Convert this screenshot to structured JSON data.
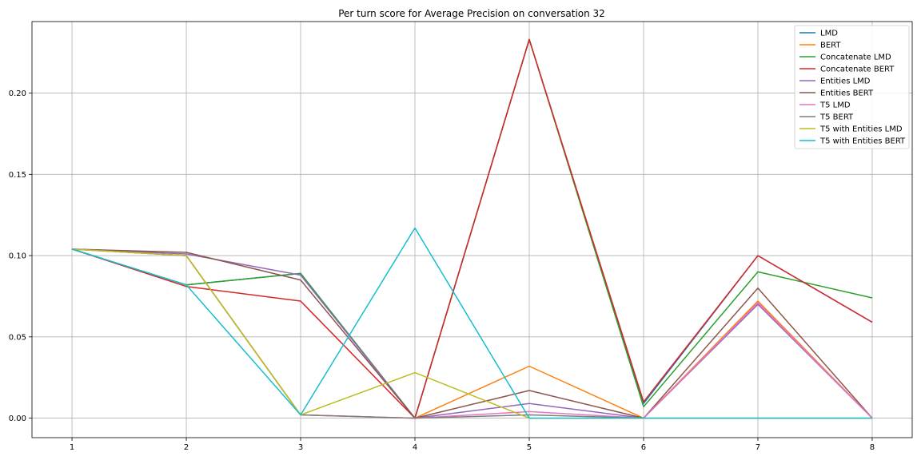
{
  "chart_data": {
    "type": "line",
    "title": "Per turn score for Average Precision on conversation 32",
    "xlabel": "",
    "ylabel": "",
    "x": [
      1,
      2,
      3,
      4,
      5,
      6,
      7,
      8
    ],
    "xlim": [
      0.65,
      8.35
    ],
    "ylim": [
      -0.012,
      0.244
    ],
    "yticks": [
      "0.00",
      "0.05",
      "0.10",
      "0.15",
      "0.20"
    ],
    "grid": true,
    "legend_position": "top-right",
    "series": [
      {
        "name": "LMD",
        "color": "#1f77b4",
        "values": [
          0.104,
          0.082,
          0.089,
          0.0,
          0.233,
          0.009,
          0.1,
          0.059
        ]
      },
      {
        "name": "BERT",
        "color": "#ff7f0e",
        "values": [
          0.104,
          0.1,
          0.002,
          0.0,
          0.032,
          0.0,
          0.072,
          0.0
        ]
      },
      {
        "name": "Concatenate LMD",
        "color": "#2ca02c",
        "values": [
          0.104,
          0.082,
          0.089,
          0.0,
          0.233,
          0.007,
          0.09,
          0.074
        ]
      },
      {
        "name": "Concatenate BERT",
        "color": "#d62728",
        "values": [
          0.104,
          0.081,
          0.072,
          0.0,
          0.233,
          0.01,
          0.1,
          0.059
        ]
      },
      {
        "name": "Entities LMD",
        "color": "#9467bd",
        "values": [
          0.104,
          0.101,
          0.088,
          0.0,
          0.009,
          0.0,
          0.07,
          0.0
        ]
      },
      {
        "name": "Entities BERT",
        "color": "#8c564b",
        "values": [
          0.104,
          0.102,
          0.085,
          0.0,
          0.017,
          0.0,
          0.08,
          0.0
        ]
      },
      {
        "name": "T5 LMD",
        "color": "#e377c2",
        "values": [
          0.104,
          0.1,
          0.002,
          0.0,
          0.004,
          0.0,
          0.071,
          0.0
        ]
      },
      {
        "name": "T5 BERT",
        "color": "#7f7f7f",
        "values": [
          0.104,
          0.1,
          0.002,
          0.0,
          0.002,
          0.0,
          0.0,
          0.0
        ]
      },
      {
        "name": "T5 with Entities LMD",
        "color": "#bcbd22",
        "values": [
          0.104,
          0.1,
          0.002,
          0.028,
          0.0,
          0.0,
          0.0,
          0.0
        ]
      },
      {
        "name": "T5 with Entities BERT",
        "color": "#17becf",
        "values": [
          0.104,
          0.082,
          0.002,
          0.117,
          0.0,
          0.0,
          0.0,
          0.0
        ]
      }
    ]
  }
}
